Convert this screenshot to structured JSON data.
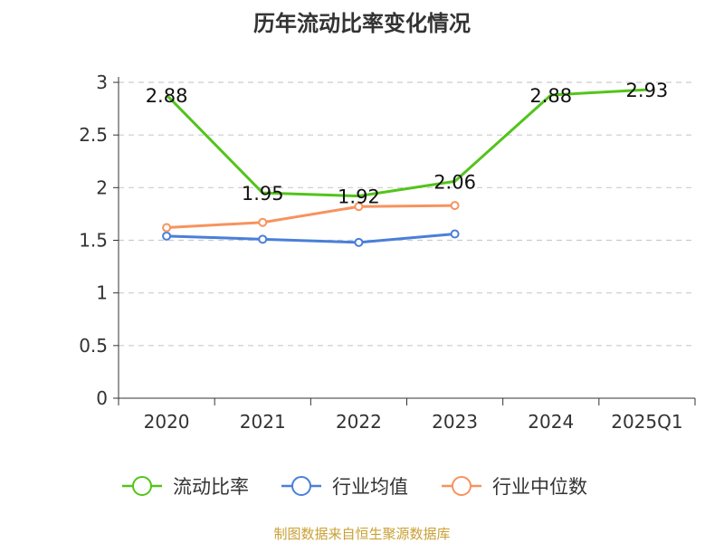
{
  "title": "历年流动比率变化情况",
  "source": "制图数据来自恒生聚源数据库",
  "chart_data": {
    "type": "line",
    "title": "历年流动比率变化情况",
    "categories": [
      "2020",
      "2021",
      "2022",
      "2023",
      "2024",
      "2025Q1"
    ],
    "ylim": [
      0,
      3
    ],
    "yticks": [
      "0",
      "0.5",
      "1",
      "1.5",
      "2",
      "2.5",
      "3"
    ],
    "ytick_values": [
      0,
      0.5,
      1,
      1.5,
      2,
      2.5,
      3
    ],
    "grid": true,
    "legend_position": "bottom",
    "series": [
      {
        "name": "流动比率",
        "color": "#52c41a",
        "values": [
          2.88,
          1.95,
          1.92,
          2.06,
          2.88,
          2.93
        ],
        "labels": [
          "2.88",
          "1.95",
          "1.92",
          "2.06",
          "2.88",
          "2.93"
        ]
      },
      {
        "name": "行业均值",
        "color": "#4a7fd9",
        "values": [
          1.54,
          1.51,
          1.48,
          1.56,
          null,
          null
        ]
      },
      {
        "name": "行业中位数",
        "color": "#f7935e",
        "values": [
          1.62,
          1.67,
          1.82,
          1.83,
          null,
          null
        ]
      }
    ]
  }
}
